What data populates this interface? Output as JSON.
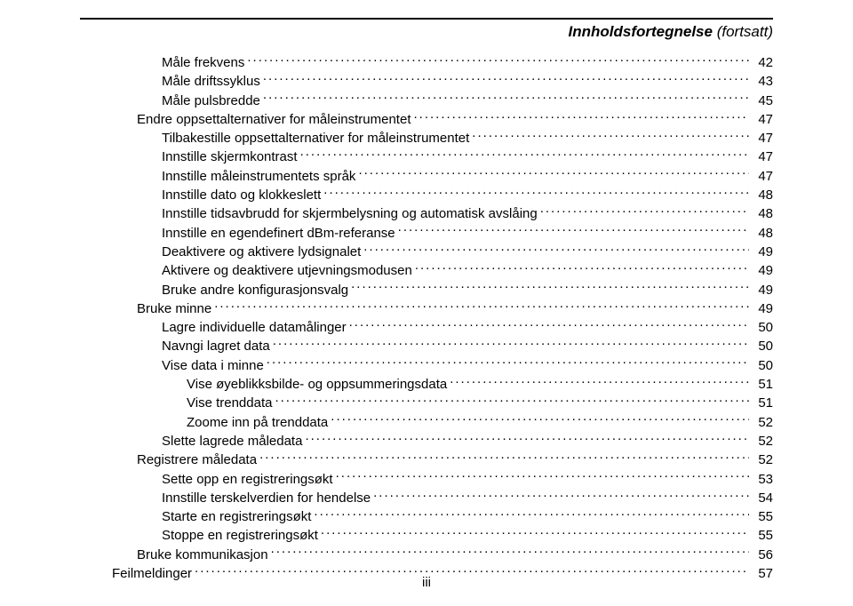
{
  "header": {
    "title_bold": "Innholdsfortegnelse",
    "title_cont": " (fortsatt)"
  },
  "toc": [
    {
      "indent": 2,
      "label": "Måle frekvens",
      "page": "42"
    },
    {
      "indent": 2,
      "label": "Måle driftssyklus",
      "page": "43"
    },
    {
      "indent": 2,
      "label": "Måle pulsbredde",
      "page": "45"
    },
    {
      "indent": 1,
      "label": "Endre oppsettalternativer for måleinstrumentet",
      "page": "47"
    },
    {
      "indent": 2,
      "label": "Tilbakestille oppsettalternativer for måleinstrumentet",
      "page": "47"
    },
    {
      "indent": 2,
      "label": "Innstille skjermkontrast",
      "page": "47"
    },
    {
      "indent": 2,
      "label": "Innstille måleinstrumentets språk",
      "page": "47"
    },
    {
      "indent": 2,
      "label": "Innstille dato og klokkeslett",
      "page": "48"
    },
    {
      "indent": 2,
      "label": "Innstille tidsavbrudd for skjermbelysning og automatisk avslåing",
      "page": "48"
    },
    {
      "indent": 2,
      "label": "Innstille en egendefinert dBm-referanse",
      "page": "48"
    },
    {
      "indent": 2,
      "label": "Deaktivere og aktivere lydsignalet",
      "page": "49"
    },
    {
      "indent": 2,
      "label": "Aktivere og deaktivere utjevningsmodusen",
      "page": "49"
    },
    {
      "indent": 2,
      "label": "Bruke andre konfigurasjonsvalg",
      "page": "49"
    },
    {
      "indent": 1,
      "label": "Bruke minne",
      "page": "49"
    },
    {
      "indent": 2,
      "label": "Lagre individuelle datamålinger",
      "page": "50"
    },
    {
      "indent": 2,
      "label": "Navngi lagret data",
      "page": "50"
    },
    {
      "indent": 2,
      "label": "Vise data i minne",
      "page": "50"
    },
    {
      "indent": 3,
      "label": "Vise øyeblikksbilde- og oppsummeringsdata",
      "page": "51"
    },
    {
      "indent": 3,
      "label": "Vise trenddata",
      "page": "51"
    },
    {
      "indent": 3,
      "label": "Zoome inn på trenddata",
      "page": "52"
    },
    {
      "indent": 2,
      "label": "Slette lagrede måledata",
      "page": "52"
    },
    {
      "indent": 1,
      "label": "Registrere måledata",
      "page": "52"
    },
    {
      "indent": 2,
      "label": "Sette opp en registreringsøkt",
      "page": "53"
    },
    {
      "indent": 2,
      "label": "Innstille terskelverdien for hendelse",
      "page": "54"
    },
    {
      "indent": 2,
      "label": "Starte en registreringsøkt",
      "page": "55"
    },
    {
      "indent": 2,
      "label": "Stoppe en registreringsøkt",
      "page": "55"
    },
    {
      "indent": 1,
      "label": "Bruke kommunikasjon",
      "page": "56"
    },
    {
      "indent": 0,
      "label": "Feilmeldinger",
      "page": "57"
    }
  ],
  "footer": {
    "page_number": "iii"
  }
}
